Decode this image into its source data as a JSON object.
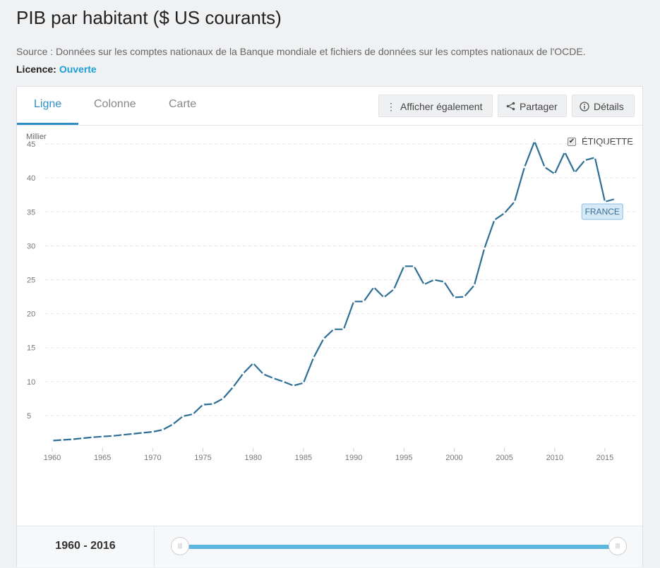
{
  "page": {
    "title": "PIB par habitant ($ US courants)",
    "source": "Source : Données sur les comptes nationaux de la Banque mondiale et fichiers de données sur les comptes nationaux de l'OCDE.",
    "licence_label": "Licence:",
    "licence_value": "Ouverte"
  },
  "tabs": [
    {
      "label": "Ligne",
      "active": true
    },
    {
      "label": "Colonne",
      "active": false
    },
    {
      "label": "Carte",
      "active": false
    }
  ],
  "toolbar": {
    "show_also": {
      "label": "Afficher également",
      "icon": "kebab-icon"
    },
    "share": {
      "label": "Partager",
      "icon": "share-icon"
    },
    "details": {
      "label": "Détails",
      "icon": "info-icon"
    }
  },
  "label_toggle": {
    "label": "ÉTIQUETTE",
    "checked": true
  },
  "accent_color": "#2e6f95",
  "tab_color": "#2e8fc6",
  "chart_data": {
    "type": "line",
    "ylabel": "Millier",
    "ylim": [
      0,
      45
    ],
    "yticks": [
      5,
      10,
      15,
      20,
      25,
      30,
      35,
      40,
      45
    ],
    "xticks": [
      1960,
      1965,
      1970,
      1975,
      1980,
      1985,
      1990,
      1995,
      2000,
      2005,
      2010,
      2015
    ],
    "grid": true,
    "series": [
      {
        "name": "FRANCE",
        "x": [
          1960,
          1961,
          1962,
          1963,
          1964,
          1965,
          1966,
          1967,
          1968,
          1969,
          1970,
          1971,
          1972,
          1973,
          1974,
          1975,
          1976,
          1977,
          1978,
          1979,
          1980,
          1981,
          1982,
          1983,
          1984,
          1985,
          1986,
          1987,
          1988,
          1989,
          1990,
          1991,
          1992,
          1993,
          1994,
          1995,
          1996,
          1997,
          1998,
          1999,
          2000,
          2001,
          2002,
          2003,
          2004,
          2005,
          2006,
          2007,
          2008,
          2009,
          2010,
          2011,
          2012,
          2013,
          2014,
          2015,
          2016
        ],
        "values": [
          1.3,
          1.4,
          1.5,
          1.65,
          1.8,
          1.9,
          2.0,
          2.15,
          2.3,
          2.45,
          2.6,
          2.9,
          3.7,
          4.9,
          5.2,
          6.6,
          6.7,
          7.5,
          9.2,
          11.2,
          12.7,
          11.1,
          10.5,
          10.0,
          9.4,
          9.8,
          13.5,
          16.3,
          17.7,
          17.7,
          21.8,
          21.8,
          23.9,
          22.4,
          23.6,
          27.0,
          27.0,
          24.3,
          25.0,
          24.7,
          22.4,
          22.5,
          24.2,
          29.6,
          33.8,
          34.8,
          36.5,
          41.6,
          45.4,
          41.6,
          40.6,
          43.8,
          40.8,
          42.6,
          43.0,
          36.5,
          36.9
        ]
      }
    ]
  },
  "time_range": {
    "label": "1960 - 2016"
  }
}
